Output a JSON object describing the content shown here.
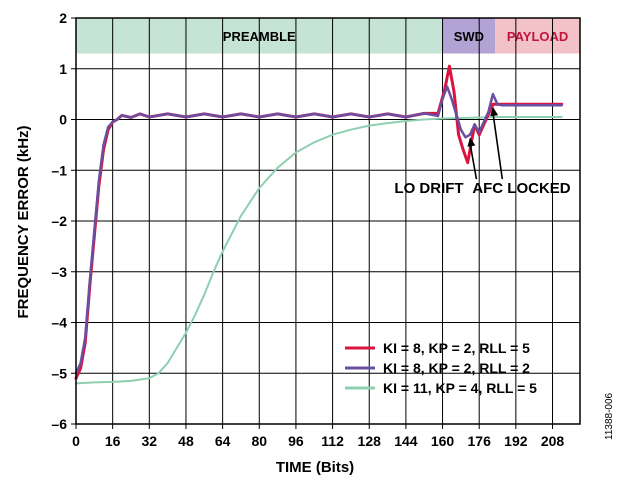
{
  "chart_data": {
    "type": "line",
    "title": "",
    "xlabel": "TIME (Bits)",
    "ylabel": "FREQUENCY ERROR (kHz)",
    "xlim": [
      0,
      220
    ],
    "ylim": [
      -6,
      2
    ],
    "xticks": [
      0,
      16,
      32,
      48,
      64,
      80,
      96,
      112,
      128,
      144,
      160,
      176,
      192,
      208
    ],
    "yticks": [
      2,
      1,
      0,
      -1,
      -2,
      -3,
      -4,
      -5,
      -6
    ],
    "grid": true,
    "bands": [
      {
        "label": "PREAMBLE",
        "x_start": 0,
        "x_end": 160,
        "color": "#c6e4d6",
        "text_color": "#000000"
      },
      {
        "label": "SWD",
        "x_start": 160,
        "x_end": 183,
        "color": "#b3a3d4",
        "text_color": "#000000"
      },
      {
        "label": "PAYLOAD",
        "x_start": 183,
        "x_end": 220,
        "color": "#f2c2c8",
        "text_color": "#c0143c"
      }
    ],
    "band_y_range": [
      1.3,
      2
    ],
    "series": [
      {
        "name": "KI = 8, KP = 2, RLL = 5",
        "color": "#d9143f",
        "stroke_width": 3,
        "x": [
          0,
          2,
          4,
          6,
          8,
          10,
          12,
          14,
          16,
          18,
          20,
          24,
          28,
          32,
          40,
          48,
          56,
          64,
          72,
          80,
          88,
          96,
          104,
          112,
          120,
          128,
          136,
          144,
          152,
          158,
          161,
          163,
          165,
          167,
          169,
          171,
          173,
          174,
          176,
          178,
          180,
          182,
          184,
          186,
          190,
          196,
          204,
          212
        ],
        "y": [
          -5.1,
          -4.9,
          -4.4,
          -3.3,
          -2.3,
          -1.3,
          -0.6,
          -0.2,
          -0.05,
          0.0,
          0.05,
          0.07,
          0.08,
          0.08,
          0.08,
          0.08,
          0.08,
          0.08,
          0.08,
          0.08,
          0.08,
          0.08,
          0.08,
          0.08,
          0.08,
          0.08,
          0.08,
          0.08,
          0.09,
          0.15,
          0.6,
          1.05,
          0.55,
          -0.3,
          -0.6,
          -0.85,
          -0.35,
          -0.1,
          -0.3,
          -0.1,
          0.1,
          0.3,
          0.3,
          0.3,
          0.3,
          0.3,
          0.3,
          0.3
        ]
      },
      {
        "name": "KI = 8, KP = 2, RLL = 2",
        "color": "#6a4fa0",
        "stroke_width": 2.5,
        "x": [
          0,
          2,
          4,
          6,
          8,
          10,
          12,
          14,
          16,
          18,
          20,
          24,
          28,
          32,
          40,
          48,
          56,
          64,
          72,
          80,
          88,
          96,
          104,
          112,
          120,
          128,
          136,
          144,
          152,
          158,
          160,
          162,
          164,
          166,
          168,
          170,
          172,
          174,
          176,
          178,
          180,
          182,
          184,
          186,
          190,
          196,
          204,
          212
        ],
        "y": [
          -5.0,
          -4.8,
          -4.3,
          -3.2,
          -2.2,
          -1.2,
          -0.5,
          -0.15,
          -0.05,
          0.0,
          0.05,
          0.07,
          0.08,
          0.08,
          0.08,
          0.08,
          0.08,
          0.08,
          0.08,
          0.08,
          0.08,
          0.08,
          0.08,
          0.08,
          0.08,
          0.08,
          0.08,
          0.08,
          0.09,
          0.1,
          0.4,
          0.65,
          0.4,
          0.1,
          -0.2,
          -0.35,
          -0.3,
          -0.1,
          -0.25,
          -0.05,
          0.15,
          0.5,
          0.3,
          0.28,
          0.28,
          0.28,
          0.28,
          0.28
        ]
      },
      {
        "name": "KI = 11, KP = 4, RLL = 5",
        "color": "#8fcfb0",
        "stroke_width": 2,
        "x": [
          0,
          8,
          16,
          24,
          32,
          36,
          40,
          44,
          48,
          52,
          56,
          60,
          64,
          72,
          80,
          88,
          96,
          104,
          112,
          120,
          128,
          136,
          144,
          152,
          160,
          168,
          176,
          184,
          192,
          200,
          212
        ],
        "y": [
          -5.2,
          -5.18,
          -5.17,
          -5.15,
          -5.1,
          -5.0,
          -4.8,
          -4.5,
          -4.2,
          -3.85,
          -3.45,
          -3.0,
          -2.6,
          -1.9,
          -1.35,
          -0.95,
          -0.65,
          -0.45,
          -0.3,
          -0.2,
          -0.12,
          -0.07,
          -0.03,
          0.0,
          0.02,
          0.03,
          0.04,
          0.05,
          0.05,
          0.05,
          0.05
        ]
      }
    ],
    "annotations": [
      {
        "text": "LO DRIFT",
        "x": 139,
        "y": -1.45,
        "arrow_to": [
          172,
          -0.35
        ]
      },
      {
        "text": "AFC LOCKED",
        "x": 173,
        "y": -1.45,
        "arrow_to": [
          182,
          0.25
        ]
      }
    ],
    "legend_position": "bottom-right",
    "figure_id": "11388-006"
  }
}
